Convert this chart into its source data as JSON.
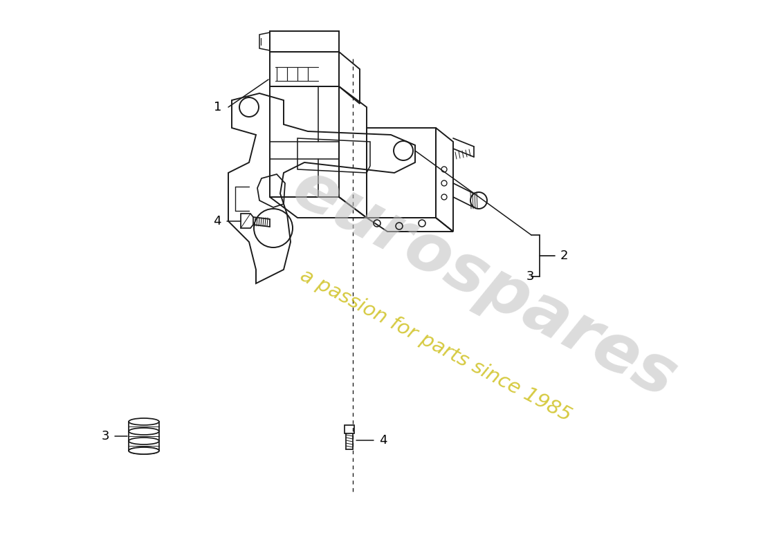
{
  "bg_color": "#ffffff",
  "line_color": "#1a1a1a",
  "watermark_color1": "#c0c0c0",
  "watermark_color2": "#c8b800",
  "fig_width": 11.0,
  "fig_height": 8.0,
  "dpi": 100
}
